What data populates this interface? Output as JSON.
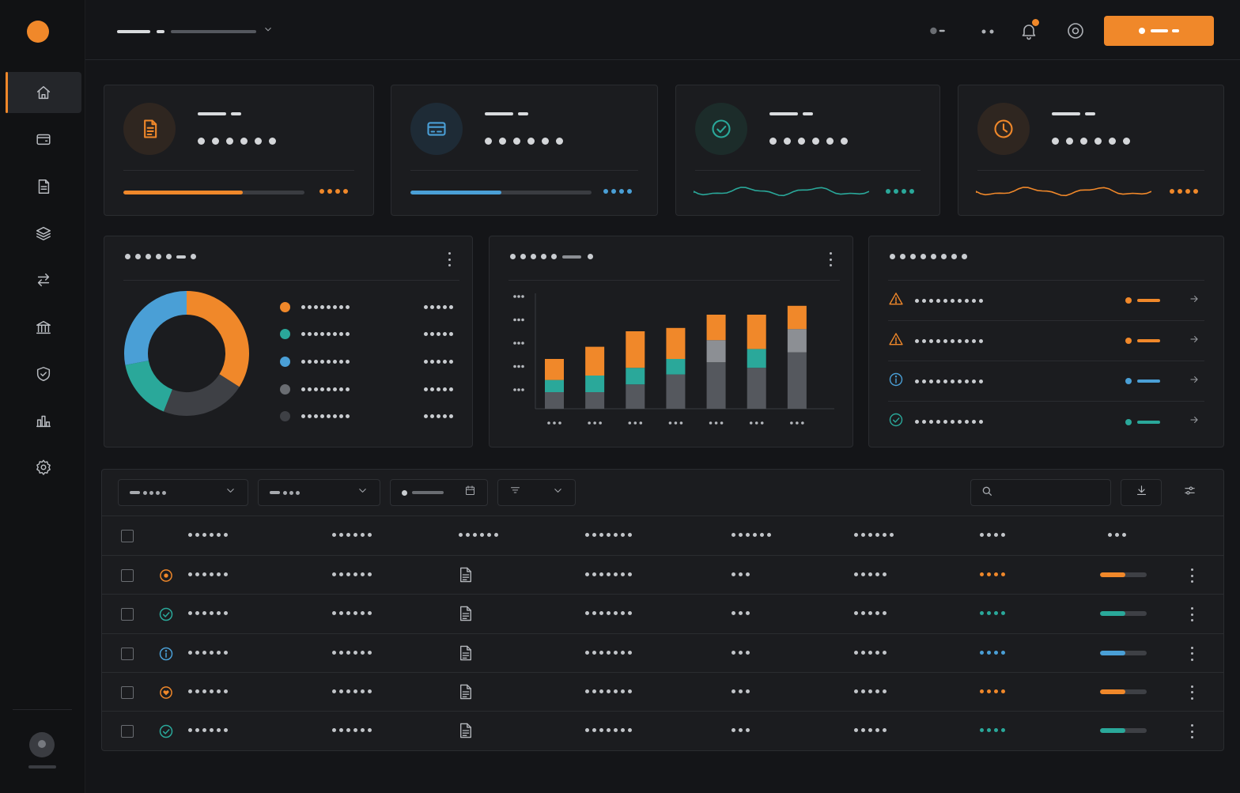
{
  "colors": {
    "accent": "#f0882a",
    "blue": "#4a9fd6",
    "teal": "#2aa89a",
    "gray": "#55585e",
    "dark_gray": "#3e4045"
  },
  "sidebar": {
    "logo_color": "#f0882a",
    "items": [
      {
        "icon": "home-icon",
        "active": true
      },
      {
        "icon": "wallet-icon",
        "active": false
      },
      {
        "icon": "document-icon",
        "active": false
      },
      {
        "icon": "layers-icon",
        "active": false
      },
      {
        "icon": "transfer-icon",
        "active": false
      },
      {
        "icon": "bank-icon",
        "active": false
      },
      {
        "icon": "shield-icon",
        "active": false
      },
      {
        "icon": "bar-chart-icon",
        "active": false
      },
      {
        "icon": "gear-icon",
        "active": false
      }
    ]
  },
  "header": {
    "icons": [
      "status-toggle-icon",
      "more-dots-icon",
      "bell-icon",
      "settings-ring-icon"
    ],
    "notification_badge_color": "#f0882a",
    "primary_button_color": "#f0882a"
  },
  "stat_cards": [
    {
      "icon": "invoice-icon",
      "color": "#f0882a",
      "progress": 0.66,
      "indicator": "progress"
    },
    {
      "icon": "card-icon",
      "color": "#4a9fd6",
      "progress": 0.5,
      "indicator": "progress"
    },
    {
      "icon": "check-circle-icon",
      "color": "#2aa89a",
      "indicator": "sparkline"
    },
    {
      "icon": "clock-icon",
      "color": "#f0882a",
      "indicator": "sparkline"
    }
  ],
  "donut_panel": {
    "chart_data": {
      "type": "pie",
      "donut": true,
      "values": [
        34,
        22,
        16,
        28
      ],
      "colors": [
        "#f0882a",
        "#3e4045",
        "#2aa89a",
        "#4a9fd6"
      ]
    },
    "legend": [
      {
        "color": "#f0882a"
      },
      {
        "color": "#2aa89a"
      },
      {
        "color": "#4a9fd6"
      },
      {
        "color": "#6a6d72"
      },
      {
        "color": "#3e4045"
      }
    ]
  },
  "bar_panel": {
    "chart_data": {
      "type": "bar",
      "stacked": true,
      "category_count": 7,
      "ylim": [
        0,
        100
      ],
      "series": [
        {
          "color": "#55585e",
          "values": [
            15,
            15,
            22,
            31,
            42,
            37,
            51
          ]
        },
        {
          "color": "#2aa89a",
          "values": [
            11,
            15,
            15,
            14,
            0,
            17,
            0
          ]
        },
        {
          "color": "#8c8f94",
          "values": [
            0,
            0,
            0,
            0,
            20,
            0,
            21
          ]
        },
        {
          "color": "#f0882a",
          "values": [
            19,
            26,
            33,
            28,
            23,
            31,
            21
          ]
        }
      ]
    }
  },
  "alerts_panel": {
    "items": [
      {
        "icon": "warning-icon",
        "color": "#f0882a"
      },
      {
        "icon": "warning-icon",
        "color": "#f0882a"
      },
      {
        "icon": "info-icon",
        "color": "#4a9fd6"
      },
      {
        "icon": "check-circle-icon",
        "color": "#2aa89a"
      }
    ]
  },
  "table": {
    "rows": [
      {
        "status_icon": "target-icon",
        "color": "#f0882a",
        "progress": 0.55
      },
      {
        "status_icon": "check-circle-icon",
        "color": "#2aa89a",
        "progress": 0.55
      },
      {
        "status_icon": "info-icon",
        "color": "#4a9fd6",
        "progress": 0.55
      },
      {
        "status_icon": "heart-circle-icon",
        "color": "#f0882a",
        "progress": 0.55
      },
      {
        "status_icon": "check-circle-icon",
        "color": "#2aa89a",
        "progress": 0.55
      }
    ]
  }
}
